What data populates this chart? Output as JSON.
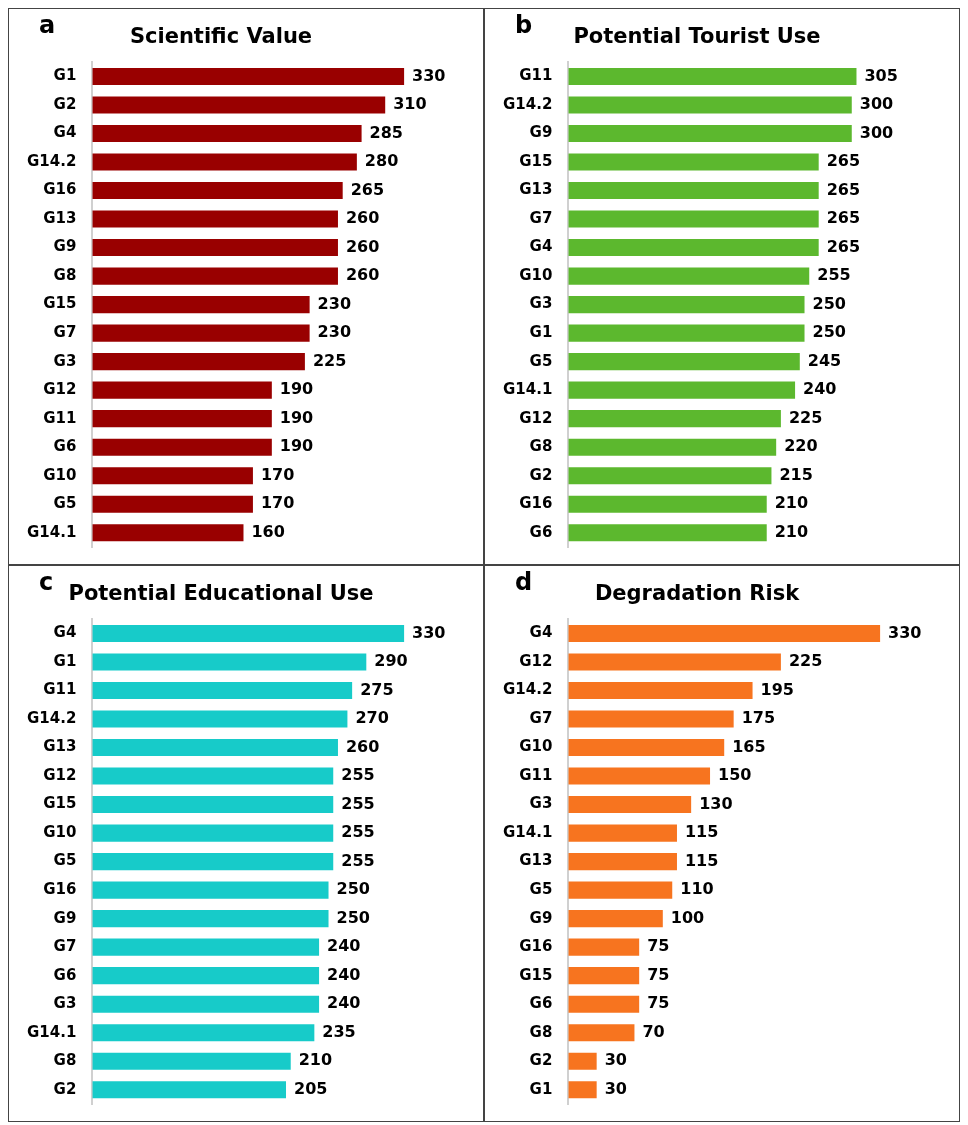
{
  "chart_data": [
    {
      "type": "bar",
      "orientation": "horizontal",
      "title": "Scientific Value",
      "annotations": [
        "a"
      ],
      "categories": [
        "G1",
        "G2",
        "G4",
        "G14.2",
        "G16",
        "G13",
        "G9",
        "G8",
        "G15",
        "G7",
        "G3",
        "G12",
        "G11",
        "G6",
        "G10",
        "G5",
        "G14.1"
      ],
      "values": [
        330,
        310,
        285,
        280,
        265,
        260,
        260,
        260,
        230,
        230,
        225,
        190,
        190,
        190,
        170,
        170,
        160
      ],
      "color": "#990000",
      "data_labels": true,
      "tick_labels": "y",
      "grid": false,
      "legend": false
    },
    {
      "type": "bar",
      "orientation": "horizontal",
      "title": "Potential Tourist Use",
      "annotations": [
        "b"
      ],
      "categories": [
        "G11",
        "G14.2",
        "G9",
        "G15",
        "G13",
        "G7",
        "G4",
        "G10",
        "G3",
        "G1",
        "G5",
        "G14.1",
        "G12",
        "G8",
        "G2",
        "G16",
        "G6"
      ],
      "values": [
        305,
        300,
        300,
        265,
        265,
        265,
        265,
        255,
        250,
        250,
        245,
        240,
        225,
        220,
        215,
        210,
        210
      ],
      "color": "#5cb82e",
      "data_labels": true,
      "tick_labels": "y",
      "grid": false,
      "legend": false
    },
    {
      "type": "bar",
      "orientation": "horizontal",
      "title": "Potential Educational Use",
      "annotations": [
        "c"
      ],
      "categories": [
        "G4",
        "G1",
        "G11",
        "G14.2",
        "G13",
        "G12",
        "G15",
        "G10",
        "G5",
        "G16",
        "G9",
        "G7",
        "G6",
        "G3",
        "G14.1",
        "G8",
        "G2"
      ],
      "values": [
        330,
        290,
        275,
        270,
        260,
        255,
        255,
        255,
        255,
        250,
        250,
        240,
        240,
        240,
        235,
        210,
        205
      ],
      "color": "#17cbc9",
      "data_labels": true,
      "tick_labels": "y",
      "grid": false,
      "legend": false
    },
    {
      "type": "bar",
      "orientation": "horizontal",
      "title": "Degradation Risk",
      "annotations": [
        "d"
      ],
      "categories": [
        "G4",
        "G12",
        "G14.2",
        "G7",
        "G10",
        "G11",
        "G3",
        "G14.1",
        "G13",
        "G5",
        "G9",
        "G16",
        "G15",
        "G6",
        "G8",
        "G2",
        "G1"
      ],
      "values": [
        330,
        225,
        195,
        175,
        165,
        150,
        130,
        115,
        115,
        110,
        100,
        75,
        75,
        75,
        70,
        30,
        30
      ],
      "color": "#f7741f",
      "data_labels": true,
      "tick_labels": "y",
      "grid": false,
      "legend": false
    }
  ]
}
